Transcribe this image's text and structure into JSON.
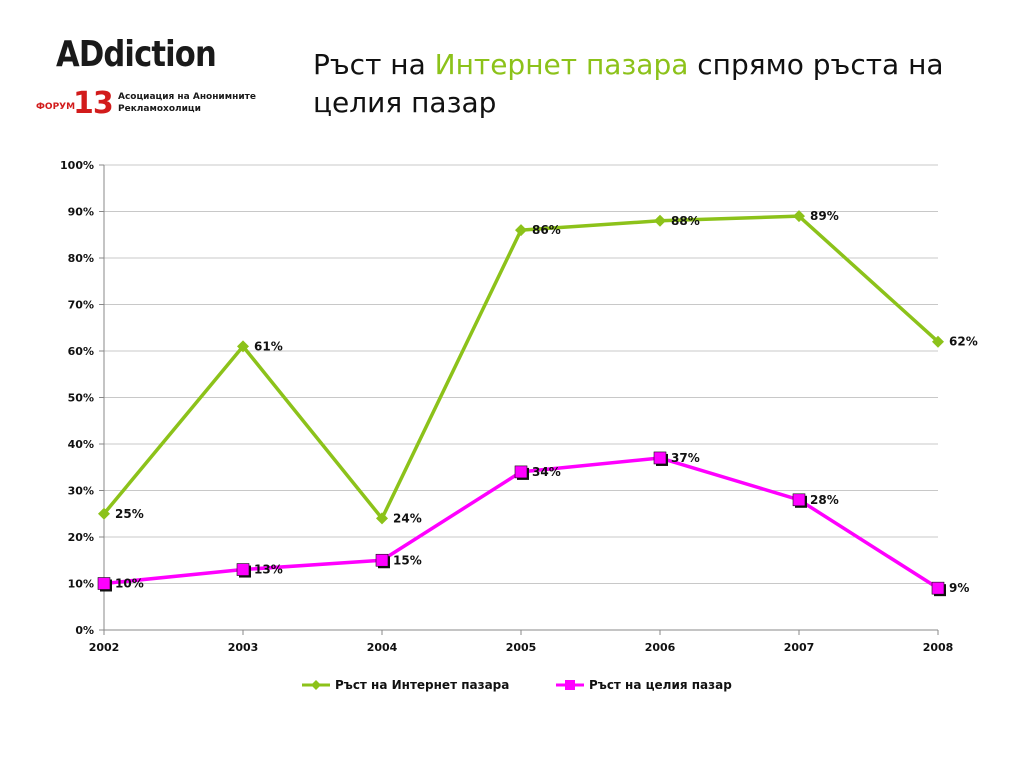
{
  "header": {
    "title_part1": "Ръст на ",
    "title_highlight": "Интернет пазара",
    "title_part2": " спрямо ръста на целия пазар"
  },
  "logo": {
    "word": "ADdiction",
    "forum": "ФОРУМ",
    "number": "13",
    "subtitle_line1": "Асоциация на Анонимните",
    "subtitle_line2": "Рекламохолици"
  },
  "chart_data": {
    "type": "line",
    "categories": [
      "2002",
      "2003",
      "2004",
      "2005",
      "2006",
      "2007",
      "2008"
    ],
    "series": [
      {
        "name": "Ръст на Интернет пазара",
        "color": "#8cc21a",
        "marker": "diamond",
        "values": [
          25,
          61,
          24,
          86,
          88,
          89,
          62
        ],
        "labels": [
          "25%",
          "61%",
          "24%",
          "86%",
          "88%",
          "89%",
          "62%"
        ]
      },
      {
        "name": "Ръст на целия пазар",
        "color": "#ff00ff",
        "marker": "square",
        "values": [
          10,
          13,
          15,
          34,
          37,
          28,
          9
        ],
        "labels": [
          "10%",
          "13%",
          "15%",
          "34%",
          "37%",
          "28%",
          "9%"
        ]
      }
    ],
    "y_ticks": [
      "0%",
      "10%",
      "20%",
      "30%",
      "40%",
      "50%",
      "60%",
      "70%",
      "80%",
      "90%",
      "100%"
    ],
    "ylim": [
      0,
      100
    ],
    "grid": true,
    "legend_position": "bottom"
  }
}
